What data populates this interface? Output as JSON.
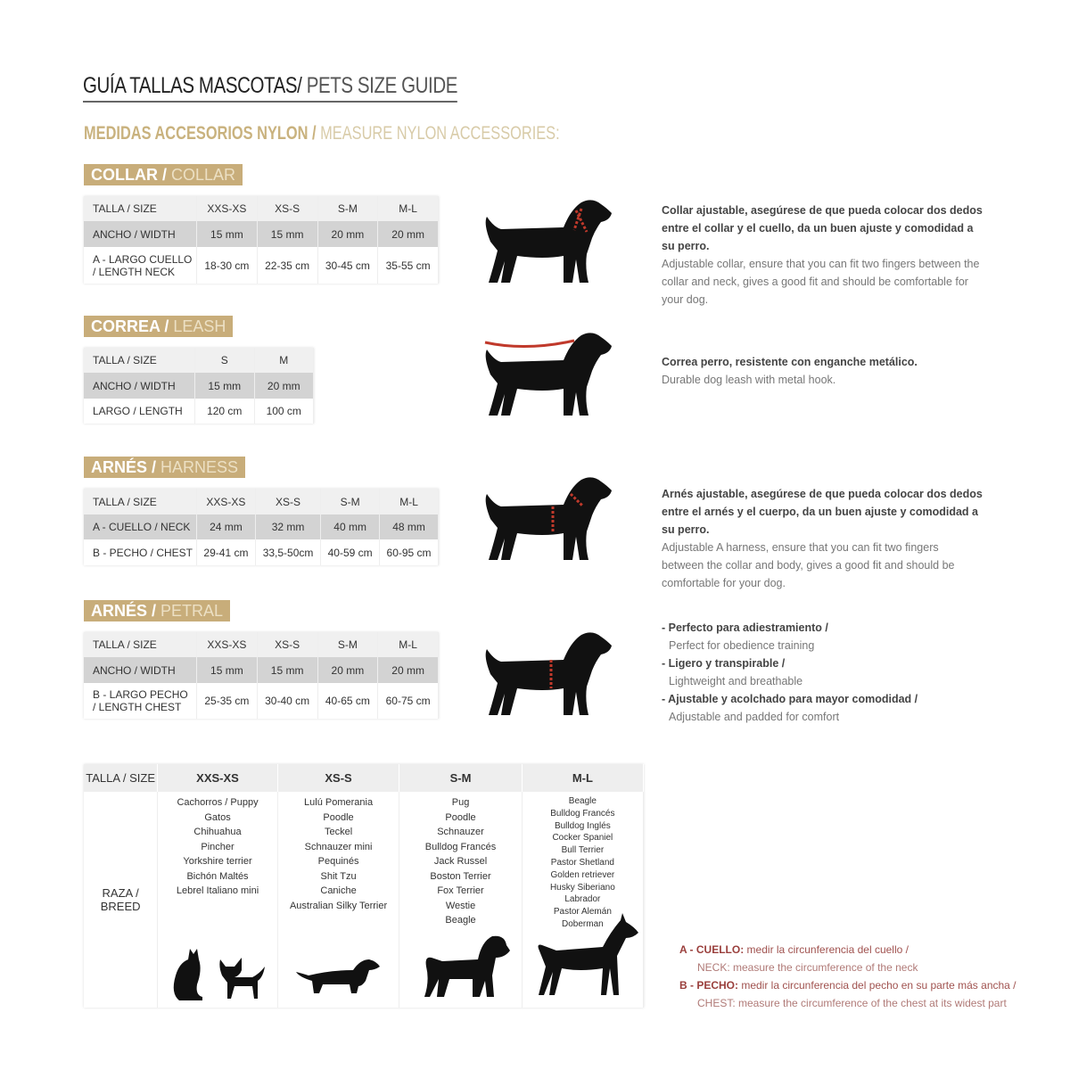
{
  "title": {
    "es": "GUÍA TALLAS MASCOTAS/",
    "en": " PETS SIZE GUIDE"
  },
  "subtitle": {
    "es": "MEDIDAS ACCESORIOS NYLON /",
    "en": " MEASURE NYLON ACCESSORIES:"
  },
  "colors": {
    "gold": "#c8ad7a",
    "red": "#c0392b",
    "gray_row": "#d3d3d3"
  },
  "sections": [
    {
      "badge_es": "COLLAR /",
      "badge_en": " COLLAR",
      "rows": [
        [
          "TALLA / SIZE",
          "XXS-XS",
          "XS-S",
          "S-M",
          "M-L"
        ],
        [
          "ANCHO / WIDTH",
          "15 mm",
          "15 mm",
          "20 mm",
          "20 mm"
        ],
        [
          "A - LARGO CUELLO / LENGTH NECK",
          "18-30 cm",
          "22-35 cm",
          "30-45 cm",
          "35-55 cm"
        ]
      ],
      "desc_es": "Collar ajustable, asegúrese de que pueda colocar dos dedos entre el collar y el cuello, da un buen ajuste y comodidad a su perro.",
      "desc_en": "Adjustable collar, ensure that you can fit two fingers between the collar and neck, gives a good fit and should be comfortable for your dog."
    },
    {
      "badge_es": "CORREA /",
      "badge_en": " LEASH",
      "rows": [
        [
          "TALLA / SIZE",
          "S",
          "M"
        ],
        [
          "ANCHO / WIDTH",
          "15 mm",
          "20 mm"
        ],
        [
          "LARGO / LENGTH",
          "120 cm",
          "100 cm"
        ]
      ],
      "desc_es": "Correa perro, resistente con enganche metálico.",
      "desc_en": "Durable dog leash with metal hook."
    },
    {
      "badge_es": "ARNÉS /",
      "badge_en": " HARNESS",
      "rows": [
        [
          "TALLA / SIZE",
          "XXS-XS",
          "XS-S",
          "S-M",
          "M-L"
        ],
        [
          "A - CUELLO / NECK",
          "24 mm",
          "32 mm",
          "40 mm",
          "48 mm"
        ],
        [
          "B - PECHO / CHEST",
          "29-41 cm",
          "33,5-50cm",
          "40-59 cm",
          "60-95 cm"
        ]
      ],
      "desc_es": "Arnés ajustable, asegúrese de que pueda colocar dos dedos entre el arnés y el cuerpo, da un buen ajuste y comodidad a su perro.",
      "desc_en": "Adjustable A harness, ensure that you can fit two fingers between the collar and body, gives a good fit and should be comfortable for your dog."
    },
    {
      "badge_es": "ARNÉS /",
      "badge_en": " PETRAL",
      "rows": [
        [
          "TALLA / SIZE",
          "XXS-XS",
          "XS-S",
          "S-M",
          "M-L"
        ],
        [
          "ANCHO / WIDTH",
          "15 mm",
          "15 mm",
          "20 mm",
          "20 mm"
        ],
        [
          "B - LARGO PECHO / LENGTH CHEST",
          "25-35 cm",
          "30-40 cm",
          "40-65 cm",
          "60-75 cm"
        ]
      ],
      "bullets": [
        {
          "es": "- Perfecto para adiestramiento /",
          "en": "Perfect for obedience training"
        },
        {
          "es": "- Ligero y transpirable /",
          "en": "Lightweight and breathable"
        },
        {
          "es": "- Ajustable y acolchado para mayor comodidad /",
          "en": "Adjustable and padded for comfort"
        }
      ]
    }
  ],
  "breed_table": {
    "header": [
      "TALLA /  SIZE",
      "XXS-XS",
      "XS-S",
      "S-M",
      "M-L"
    ],
    "row_label": "RAZA / BREED",
    "columns": [
      [
        "Cachorros / Puppy",
        "Gatos",
        "Chihuahua",
        "Pincher",
        "Yorkshire terrier",
        "Bichón Maltés",
        "Lebrel Italiano mini"
      ],
      [
        "Lulú Pomerania",
        "Poodle",
        "Teckel",
        "Schnauzer mini",
        "Pequinés",
        "Shit Tzu",
        "Caniche",
        "Australian Silky Terrier"
      ],
      [
        "Pug",
        "Poodle",
        "Schnauzer",
        "Bulldog Francés",
        "Jack Russel",
        "Boston Terrier",
        "Fox Terrier",
        "Westie",
        "Beagle"
      ],
      [
        "Beagle",
        "Bulldog Francés",
        "Bulldog Inglés",
        "Cocker Spaniel",
        "Bull Terrier",
        "Pastor Shetland",
        "Golden retriever",
        "Husky Siberiano",
        "Labrador",
        "Pastor Alemán",
        "Doberman"
      ]
    ]
  },
  "notes": [
    {
      "es": "A - CUELLO:",
      "es_rest": " medir la circunferencia del cuello /",
      "en": "NECK: measure the circumference of the neck"
    },
    {
      "es": "B - PECHO:",
      "es_rest": " medir la circunferencia del pecho en su parte más ancha /",
      "en": "CHEST: measure the circumference of the chest at its widest part"
    }
  ]
}
